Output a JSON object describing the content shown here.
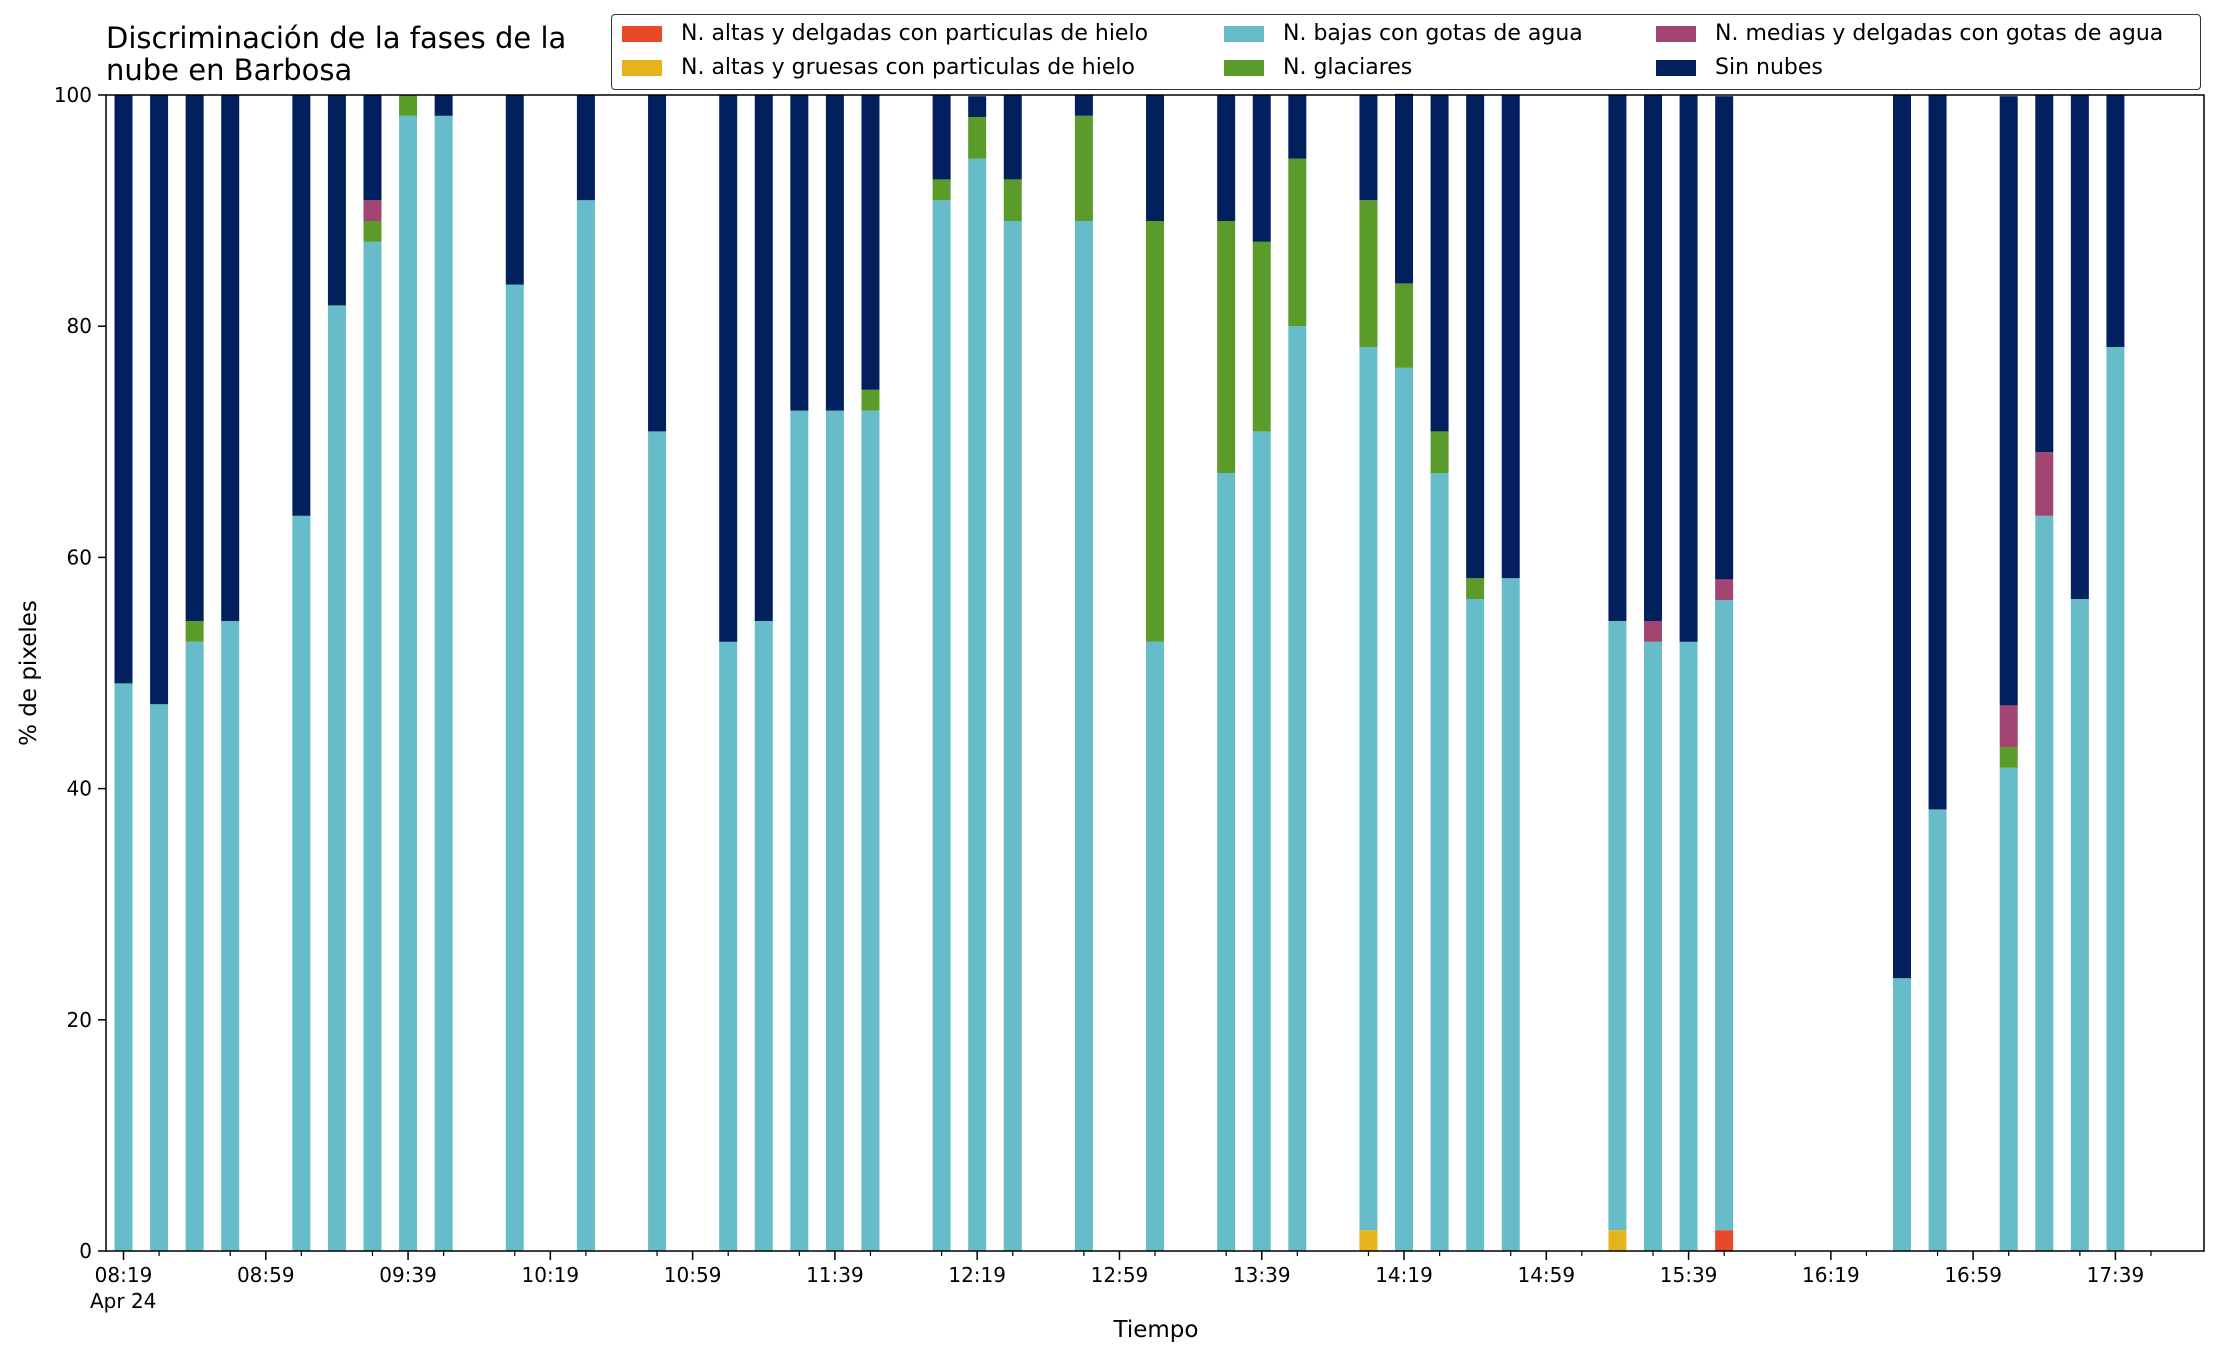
{
  "chart_data": {
    "type": "bar",
    "stacked": true,
    "title_lines": [
      "Discriminación de la fases de la",
      "nube en Barbosa"
    ],
    "xlabel": "Tiempo",
    "ylabel": "% de pixeles",
    "ylim": [
      0,
      100
    ],
    "yticks": [
      "0",
      "20",
      "40",
      "60",
      "80",
      "100"
    ],
    "xtick_labels": [
      "08:19",
      "08:59",
      "09:39",
      "10:19",
      "10:59",
      "11:39",
      "12:19",
      "12:59",
      "13:39",
      "14:19",
      "14:59",
      "15:39",
      "16:19",
      "16:59",
      "17:39"
    ],
    "xtick_sublabel": "Apr 24",
    "grid": false,
    "legend_position": "top-right",
    "slot_minutes": 10,
    "start_time": "08:19",
    "series_colors": {
      "altas_delgadas_hielo": "#e84a27",
      "altas_gruesas_hielo": "#e5b31b",
      "bajas_agua": "#66bdc9",
      "glaciares": "#5b9b2a",
      "medias_agua": "#a34573",
      "sin_nubes": "#021f5e"
    },
    "series_names": {
      "altas_delgadas_hielo": "N. altas y delgadas con particulas de hielo",
      "altas_gruesas_hielo": "N. altas y gruesas con particulas de hielo",
      "bajas_agua": "N. bajas con gotas de agua",
      "glaciares": "N. glaciares",
      "medias_agua": "N. medias y delgadas con gotas de agua",
      "sin_nubes": "Sin nubes"
    },
    "stack_order": [
      "altas_delgadas_hielo",
      "altas_gruesas_hielo",
      "bajas_agua",
      "glaciares",
      "medias_agua",
      "sin_nubes"
    ],
    "bars": [
      {
        "time": "08:19",
        "bajas_agua": 49.1,
        "sin_nubes": 50.9
      },
      {
        "time": "08:29",
        "bajas_agua": 47.3,
        "sin_nubes": 52.7
      },
      {
        "time": "08:39",
        "bajas_agua": 52.7,
        "glaciares": 1.8,
        "sin_nubes": 45.5
      },
      {
        "time": "08:49",
        "bajas_agua": 54.5,
        "sin_nubes": 45.5
      },
      {
        "time": "09:09",
        "bajas_agua": 63.6,
        "sin_nubes": 36.4
      },
      {
        "time": "09:19",
        "bajas_agua": 81.8,
        "sin_nubes": 18.2
      },
      {
        "time": "09:29",
        "bajas_agua": 87.3,
        "glaciares": 1.8,
        "medias_agua": 1.8,
        "sin_nubes": 9.1
      },
      {
        "time": "09:39",
        "bajas_agua": 98.2,
        "glaciares": 1.8
      },
      {
        "time": "09:49",
        "bajas_agua": 98.2,
        "sin_nubes": 1.8
      },
      {
        "time": "10:09",
        "bajas_agua": 83.6,
        "sin_nubes": 16.4
      },
      {
        "time": "10:29",
        "bajas_agua": 90.9,
        "sin_nubes": 9.1
      },
      {
        "time": "10:49",
        "bajas_agua": 70.9,
        "sin_nubes": 29.1
      },
      {
        "time": "11:09",
        "bajas_agua": 52.7,
        "sin_nubes": 47.3
      },
      {
        "time": "11:19",
        "bajas_agua": 54.5,
        "sin_nubes": 45.5
      },
      {
        "time": "11:29",
        "bajas_agua": 72.7,
        "sin_nubes": 27.3
      },
      {
        "time": "11:39",
        "bajas_agua": 72.7,
        "sin_nubes": 27.3
      },
      {
        "time": "11:49",
        "bajas_agua": 72.7,
        "glaciares": 1.8,
        "sin_nubes": 25.5
      },
      {
        "time": "12:09",
        "bajas_agua": 90.9,
        "glaciares": 1.8,
        "sin_nubes": 7.3
      },
      {
        "time": "12:19",
        "bajas_agua": 94.5,
        "glaciares": 3.6,
        "sin_nubes": 1.8
      },
      {
        "time": "12:29",
        "bajas_agua": 89.1,
        "glaciares": 3.6,
        "sin_nubes": 7.3
      },
      {
        "time": "12:49",
        "bajas_agua": 89.1,
        "glaciares": 9.1,
        "sin_nubes": 1.8
      },
      {
        "time": "13:09",
        "bajas_agua": 52.7,
        "glaciares": 36.4,
        "sin_nubes": 10.9
      },
      {
        "time": "13:29",
        "bajas_agua": 67.3,
        "glaciares": 21.8,
        "sin_nubes": 10.9
      },
      {
        "time": "13:39",
        "bajas_agua": 70.9,
        "glaciares": 16.4,
        "sin_nubes": 12.7
      },
      {
        "time": "13:49",
        "bajas_agua": 80.0,
        "glaciares": 14.5,
        "sin_nubes": 5.5
      },
      {
        "time": "14:09",
        "altas_gruesas_hielo": 1.8,
        "bajas_agua": 76.4,
        "glaciares": 12.7,
        "sin_nubes": 9.1
      },
      {
        "time": "14:19",
        "bajas_agua": 76.4,
        "glaciares": 7.3,
        "sin_nubes": 16.4
      },
      {
        "time": "14:29",
        "bajas_agua": 67.3,
        "glaciares": 3.6,
        "sin_nubes": 29.1
      },
      {
        "time": "14:39",
        "bajas_agua": 56.4,
        "glaciares": 1.8,
        "sin_nubes": 41.8
      },
      {
        "time": "14:49",
        "bajas_agua": 58.2,
        "sin_nubes": 41.8
      },
      {
        "time": "15:19",
        "altas_gruesas_hielo": 1.8,
        "bajas_agua": 52.7,
        "sin_nubes": 45.5
      },
      {
        "time": "15:29",
        "bajas_agua": 52.7,
        "medias_agua": 1.8,
        "sin_nubes": 45.5
      },
      {
        "time": "15:39",
        "bajas_agua": 52.7,
        "sin_nubes": 47.3
      },
      {
        "time": "15:49",
        "altas_delgadas_hielo": 1.8,
        "bajas_agua": 54.5,
        "medias_agua": 1.8,
        "sin_nubes": 41.8
      },
      {
        "time": "16:39",
        "bajas_agua": 23.6,
        "sin_nubes": 76.4
      },
      {
        "time": "16:49",
        "bajas_agua": 38.2,
        "sin_nubes": 61.8
      },
      {
        "time": "17:09",
        "bajas_agua": 41.8,
        "glaciares": 1.8,
        "medias_agua": 3.6,
        "sin_nubes": 52.7
      },
      {
        "time": "17:19",
        "bajas_agua": 63.6,
        "medias_agua": 5.5,
        "sin_nubes": 30.9
      },
      {
        "time": "17:29",
        "bajas_agua": 56.4,
        "sin_nubes": 43.6
      },
      {
        "time": "17:39",
        "bajas_agua": 78.2,
        "sin_nubes": 21.8
      }
    ]
  }
}
